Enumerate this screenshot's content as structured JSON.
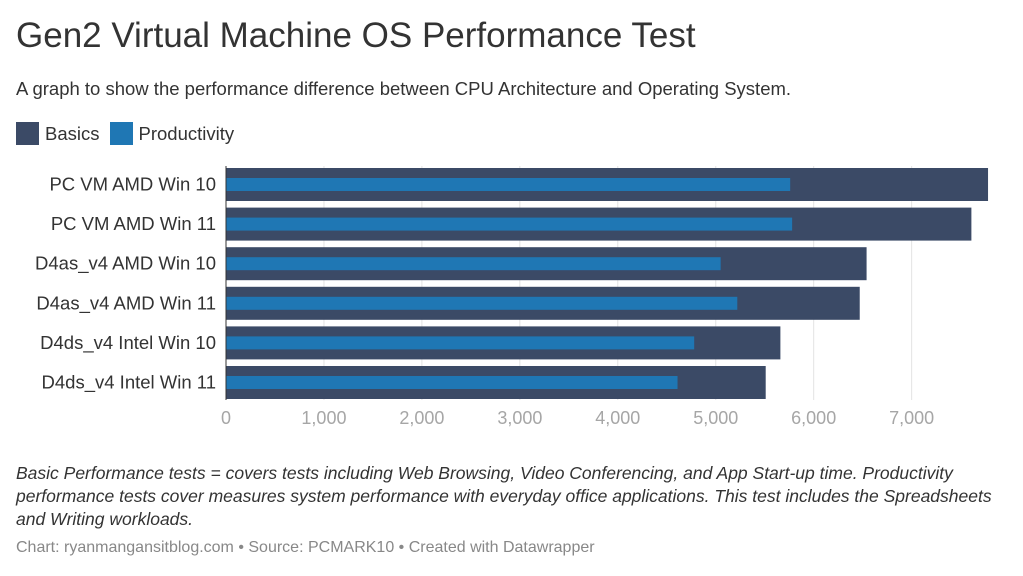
{
  "header": {
    "title": "Gen2 Virtual Machine OS Performance Test",
    "subtitle": "A graph to show the performance difference between CPU Architecture and Operating System."
  },
  "legend": [
    {
      "label": "Basics",
      "color": "#3b4a66"
    },
    {
      "label": "Productivity",
      "color": "#1f77b4"
    }
  ],
  "notes": "Basic Performance tests = covers tests including Web Browsing, Video Conferencing, and App Start-up time. Productivity performance tests cover measures system performance with everyday office applications. This test includes the Spreadsheets and Writing workloads.",
  "footer": "Chart: ryanmangansitblog.com • Source: PCMARK10 • Created with Datawrapper",
  "chart_data": {
    "type": "bar",
    "orientation": "horizontal",
    "categories": [
      "PC VM AMD Win 10",
      "PC VM AMD Win 11",
      "D4as_v4 AMD Win 10",
      "D4as_v4 AMD Win 11",
      "D4ds_v4 Intel Win 10",
      "D4ds_v4 Intel Win 11"
    ],
    "series": [
      {
        "name": "Basics",
        "color": "#3b4a66",
        "values": [
          7780,
          7610,
          6540,
          6470,
          5660,
          5510
        ]
      },
      {
        "name": "Productivity",
        "color": "#1f77b4",
        "values": [
          5760,
          5780,
          5050,
          5220,
          4780,
          4610
        ]
      }
    ],
    "xlim": [
      0,
      7800
    ],
    "xticks": [
      0,
      1000,
      2000,
      3000,
      4000,
      5000,
      6000,
      7000
    ],
    "xtick_labels": [
      "0",
      "1,000",
      "2,000",
      "3,000",
      "4,000",
      "5,000",
      "6,000",
      "7,000"
    ],
    "grid": true
  }
}
